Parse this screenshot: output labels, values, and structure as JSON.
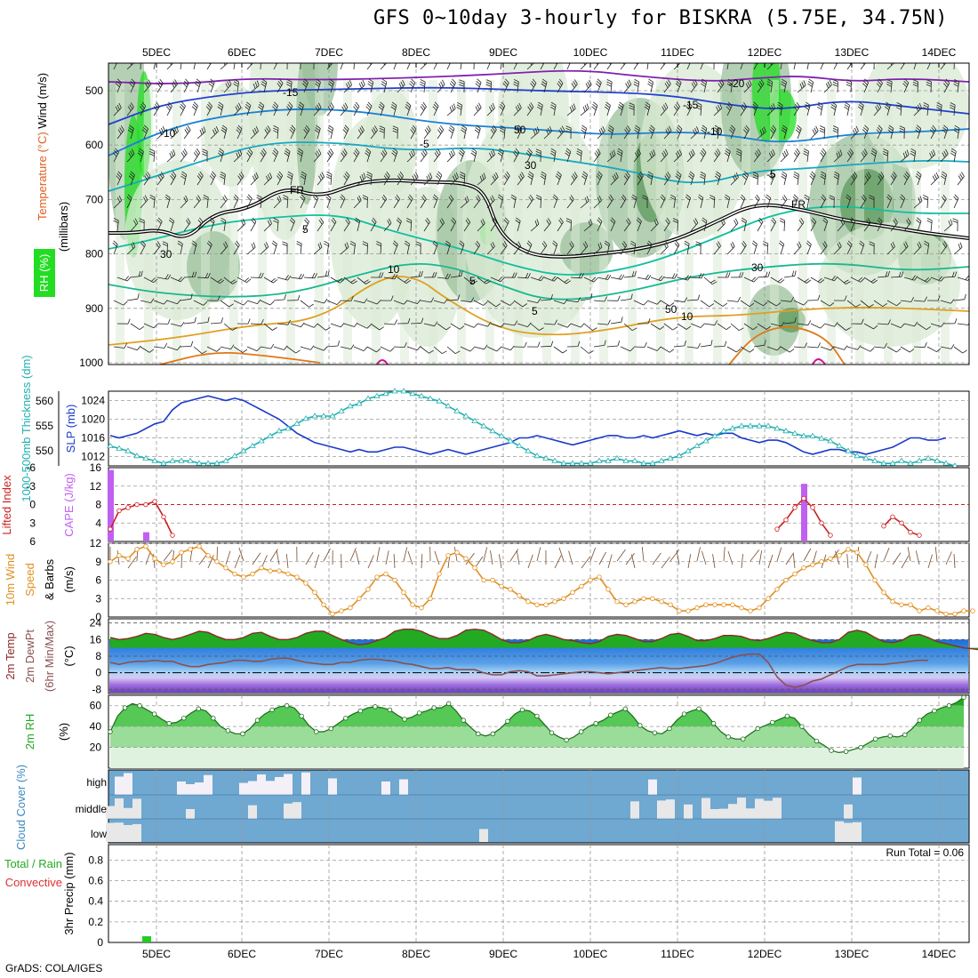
{
  "title": "GFS 0~10day 3-hourly for BISKRA (5.75E, 34.75N)",
  "credit": "GrADS: COLA/IGES",
  "colors": {
    "rh_light": "#d9ead3",
    "rh_mid": "#9bc09b",
    "rh_dark": "#5c9a5c",
    "rh_bright": "#22dd22",
    "slp": "#1a3ac8",
    "thickness": "#22b0b0",
    "cape": "#c060f0",
    "lifted": "#cc2020",
    "wind10": "#e09020",
    "temp_fill": "#22aa22",
    "dew": "#8a5050",
    "rh2m_fill": "#44cc44",
    "cloud_bg": "#6fa8d0",
    "cloud_bar": "#e8e8e8",
    "precip": "#22cc22"
  },
  "chart_data": [
    {
      "id": "upper-air",
      "type": "heatmap",
      "ylabel_parts": [
        "RH (%)",
        "Temperature (°C)",
        "Wind (m/s)",
        "(millibars)"
      ],
      "y_ticks": [
        "500",
        "600",
        "700",
        "800",
        "900",
        "1000"
      ],
      "x_ticks": [
        "5DEC",
        "6DEC",
        "7DEC",
        "8DEC",
        "9DEC",
        "10DEC",
        "11DEC",
        "12DEC",
        "13DEC",
        "14DEC"
      ],
      "contour_labels": [
        "-20",
        "-15",
        "-15",
        "-10",
        "-10",
        "-5",
        "-5",
        "5",
        "5",
        "5",
        "10",
        "10",
        "FR",
        "FR",
        "30",
        "30",
        "30",
        "50",
        "50"
      ]
    },
    {
      "id": "slp-thickness",
      "type": "line",
      "ylabel_left": "1000-500mb Thickness (dm)",
      "ylabel_right": "SLP (mb)",
      "left_ticks": [
        "550",
        "555",
        "560"
      ],
      "right_ticks": [
        "1012",
        "1016",
        "1020",
        "1024"
      ],
      "left_ylim": [
        547,
        562
      ],
      "right_ylim": [
        1010,
        1026
      ],
      "series": [
        {
          "name": "SLP (mb)",
          "axis": "right",
          "values": [
            1016.5,
            1016,
            1016.5,
            1017,
            1018,
            1019,
            1019.5,
            1022,
            1023.5,
            1024,
            1024.5,
            1025,
            1024.5,
            1024,
            1024.5,
            1024,
            1023,
            1022,
            1021,
            1020,
            1018.5,
            1017,
            1016,
            1015,
            1014.5,
            1014,
            1013.5,
            1013,
            1013.5,
            1013,
            1013,
            1013.5,
            1014,
            1014,
            1013.5,
            1013,
            1012.5,
            1013,
            1013.5,
            1013,
            1012.5,
            1013,
            1013.5,
            1014,
            1014.5,
            1015,
            1016,
            1016,
            1016.5,
            1016,
            1015.5,
            1015,
            1014.5,
            1015,
            1015.5,
            1016,
            1016.5,
            1016.5,
            1016,
            1016,
            1016.5,
            1016,
            1016.5,
            1017,
            1017.5,
            1017,
            1016.5,
            1017,
            1016.5,
            1017,
            1017,
            1016,
            1015.5,
            1015,
            1015.5,
            1015.5,
            1015,
            1014,
            1013,
            1012.5,
            1013,
            1013.5,
            1013.5,
            1013,
            1013,
            1012.5,
            1013,
            1013.5,
            1014,
            1015,
            1016,
            1016,
            1015.5,
            1015.5,
            1016
          ]
        },
        {
          "name": "Thickness (dm)",
          "axis": "left",
          "values": [
            551,
            550.5,
            550,
            549,
            548.5,
            548,
            547.5,
            548,
            548,
            548,
            547.5,
            547.5,
            547.5,
            548,
            549,
            550,
            551,
            552,
            553,
            554,
            554.5,
            555.5,
            556.5,
            557,
            557,
            557,
            558,
            559,
            559.5,
            560.5,
            561,
            561.5,
            562,
            562,
            561.5,
            561,
            560.5,
            560,
            559,
            558,
            557,
            556,
            555,
            554,
            553,
            552,
            551,
            550,
            549,
            548.5,
            548,
            547.5,
            547.5,
            547.5,
            547.5,
            548,
            548,
            548.5,
            548,
            548,
            547.5,
            547.5,
            548,
            548.5,
            549,
            550,
            551,
            552,
            553,
            554,
            554.5,
            555,
            555,
            555,
            555,
            554.5,
            554,
            553.5,
            553,
            553,
            552.5,
            552,
            551,
            550,
            549,
            548.5,
            548,
            547.5,
            547.5,
            548,
            547.5,
            548,
            548.5,
            548,
            547.5,
            547
          ]
        }
      ]
    },
    {
      "id": "cape-li",
      "type": "bar",
      "ylabel_left": "CAPE (J/kg)",
      "ylabel_right": "Lifted Index",
      "cape_ticks": [
        "4",
        "8",
        "12",
        "16"
      ],
      "li_ticks": [
        "6",
        "3",
        "0",
        "-3",
        "-6"
      ],
      "cape_ylim": [
        0,
        16
      ],
      "li_ylim": [
        6,
        -6
      ],
      "cape_bars": [
        {
          "index": 0,
          "value": 15.5
        },
        {
          "index": 4,
          "value": 2
        },
        {
          "index": 78,
          "value": 12.5
        }
      ],
      "series": [
        {
          "name": "Lifted Index",
          "segments": [
            {
              "start": 0,
              "values": [
                4,
                1,
                0.5,
                0,
                0,
                -0.5,
                2,
                5
              ]
            },
            {
              "start": 75,
              "values": [
                4,
                2.5,
                0.5,
                -1,
                0.5,
                3,
                5
              ]
            },
            {
              "start": 87,
              "values": [
                3.5,
                2,
                3,
                4.5,
                5
              ]
            }
          ]
        }
      ]
    },
    {
      "id": "wind10m",
      "type": "line",
      "ylabel_parts": [
        "10m Wind",
        "Speed",
        "& Barbs",
        "(m/s)"
      ],
      "y_ticks": [
        "0",
        "3",
        "6",
        "9",
        "12"
      ],
      "ylim": [
        0,
        12
      ],
      "series": [
        {
          "name": "10m Wind Speed",
          "values": [
            9,
            10,
            9.5,
            11,
            11.5,
            9.5,
            8.5,
            9,
            10.5,
            11,
            11.5,
            10,
            9,
            8,
            7,
            6.5,
            7,
            8,
            7.5,
            7.5,
            7,
            6.5,
            5.5,
            4,
            2,
            0.5,
            1,
            1.5,
            3,
            4.5,
            6.5,
            7,
            6,
            4,
            2,
            1.5,
            3,
            7,
            10,
            10.5,
            9.5,
            8,
            6,
            6,
            5,
            4.5,
            3.5,
            2.5,
            2,
            2,
            2.5,
            3,
            4,
            5,
            6,
            6.5,
            4.5,
            2.5,
            2,
            2.5,
            3,
            3,
            2.5,
            2,
            1,
            1,
            1.5,
            2,
            2,
            2,
            2,
            1.5,
            1,
            1.5,
            3,
            4.5,
            6,
            7,
            8,
            8.5,
            9,
            9.5,
            10,
            11,
            10.5,
            8.5,
            6,
            4,
            2.5,
            2,
            2,
            1,
            1.5,
            1,
            0.5,
            0.5,
            1,
            1
          ]
        }
      ]
    },
    {
      "id": "temp2m",
      "type": "area",
      "ylabel_parts": [
        "2m Temp",
        "2m DewPt",
        "(6hr Min/Max)",
        "(°C)"
      ],
      "y_ticks": [
        "-8",
        "0",
        "8",
        "16",
        "24"
      ],
      "ylim": [
        -10,
        26
      ],
      "series": [
        {
          "name": "2m Temp",
          "values": [
            17,
            16,
            16.5,
            17.5,
            19,
            18.5,
            17,
            16,
            17,
            18.5,
            20,
            19.5,
            17.5,
            16,
            16,
            17,
            19,
            19.5,
            17.5,
            16,
            16,
            17,
            19,
            20,
            20,
            18,
            16,
            14.5,
            13.5,
            14,
            15.5,
            17,
            20,
            21,
            21,
            20,
            18,
            16.5,
            16.5,
            18,
            20.5,
            21,
            20.5,
            18.5,
            16,
            14.5,
            14.5,
            15.5,
            17.5,
            18.5,
            17.5,
            16,
            15.5,
            14.5,
            14,
            15,
            17.5,
            18.5,
            18,
            16.5,
            15,
            15,
            16.5,
            18.5,
            19,
            17.5,
            15.5,
            15.5,
            16.5,
            18,
            18,
            17.5,
            16,
            15.5,
            16.5,
            18,
            19.5,
            19,
            17,
            15.5,
            14.5,
            14.5,
            16,
            19.5,
            20.5,
            19.5,
            17,
            15,
            14.5,
            15.5,
            18,
            18.5,
            17,
            15,
            14,
            13,
            12,
            11.5,
            11
          ]
        },
        {
          "name": "2m DewPt",
          "values": [
            5,
            4,
            5,
            5.5,
            5.5,
            6,
            5.5,
            5.5,
            4,
            3,
            3,
            4,
            4.5,
            5,
            6,
            6,
            5.5,
            5.5,
            6.5,
            7,
            7,
            6,
            5,
            4.5,
            4,
            4,
            5,
            5,
            6,
            6.5,
            6.5,
            6,
            5.5,
            4.5,
            4,
            3,
            2,
            2,
            2.5,
            1.5,
            1.5,
            1.5,
            0,
            -1,
            -1,
            0.5,
            1,
            0.5,
            -1.5,
            -1.5,
            -1,
            -0.5,
            0,
            0.5,
            0.5,
            0,
            -0.5,
            0,
            0.5,
            1,
            1.5,
            2,
            2.5,
            2,
            2,
            2.5,
            3,
            3.5,
            4.5,
            6,
            7.5,
            8.5,
            9,
            9,
            5,
            -2,
            -6,
            -7,
            -6,
            -4,
            -3,
            -1,
            1,
            3,
            4,
            4,
            4,
            4,
            4.5,
            5,
            5.5,
            6,
            6
          ]
        }
      ]
    },
    {
      "id": "rh2m",
      "type": "area",
      "ylabel_parts": [
        "2m RH",
        "(%)"
      ],
      "y_ticks": [
        "20",
        "40",
        "60"
      ],
      "ylim": [
        0,
        70
      ],
      "series": [
        {
          "name": "2m RH",
          "values": [
            35,
            50,
            58,
            62,
            60,
            56,
            52,
            47,
            43,
            44,
            48,
            53,
            57,
            55,
            48,
            40,
            36,
            33,
            33,
            38,
            46,
            52,
            56,
            59,
            60,
            58,
            50,
            41,
            35,
            35,
            38,
            43,
            48,
            52,
            55,
            58,
            59,
            58,
            56,
            51,
            47,
            49,
            53,
            55,
            58,
            58,
            62,
            55,
            46,
            39,
            33,
            31,
            33,
            38,
            45,
            52,
            56,
            55,
            50,
            42,
            34,
            30,
            27,
            30,
            35,
            40,
            43,
            46,
            51,
            54,
            57,
            50,
            41,
            36,
            34,
            33,
            38,
            46,
            52,
            55,
            57,
            52,
            43,
            35,
            30,
            28,
            28,
            33,
            38,
            41,
            44,
            47,
            50,
            48,
            40,
            32,
            26,
            22,
            17,
            15,
            16,
            18,
            20,
            24,
            28,
            30,
            31,
            30,
            32,
            38,
            46,
            52,
            55,
            58,
            60,
            63,
            68
          ]
        }
      ]
    },
    {
      "id": "cloud",
      "type": "bar",
      "ylabel": "Cloud Cover (%)",
      "levels": [
        "high",
        "middle",
        "low"
      ]
    },
    {
      "id": "precip",
      "type": "bar",
      "ylabel_left": "3hr Precip (mm)",
      "legend_parts": [
        "Total / Rain",
        "Convective"
      ],
      "run_total_label": "Run Total = 0.06",
      "y_ticks": [
        "0",
        "0.2",
        "0.4",
        "0.6",
        "0.8"
      ],
      "ylim": [
        0,
        0.95
      ],
      "bars": [
        {
          "index": 2,
          "value": 0.06
        }
      ]
    }
  ]
}
